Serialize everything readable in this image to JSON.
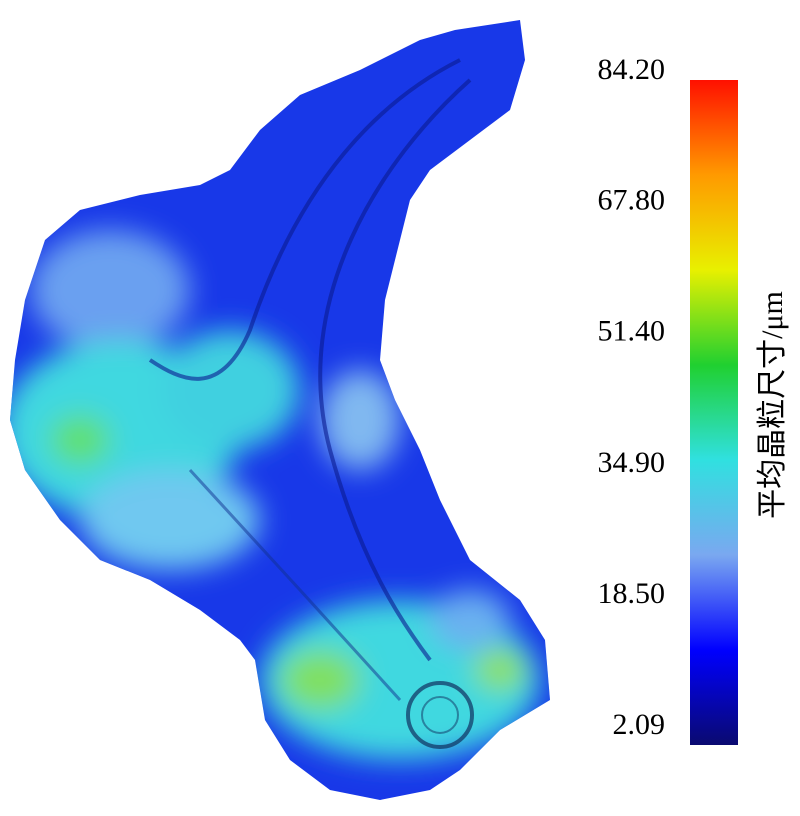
{
  "chart_data": {
    "type": "colorbar",
    "colorbar_label": "平均晶粒尺寸/μm",
    "clim": [
      2.09,
      84.2
    ],
    "cticks": [
      {
        "value": 2.09,
        "label": "2.09"
      },
      {
        "value": 18.5,
        "label": "18.50"
      },
      {
        "value": 34.9,
        "label": "34.90"
      },
      {
        "value": 51.4,
        "label": "51.40"
      },
      {
        "value": 67.8,
        "label": "67.80"
      },
      {
        "value": 84.2,
        "label": "84.20"
      }
    ],
    "colormap": [
      "#0a0a70",
      "#0000ff",
      "#7aa8f0",
      "#30e0e0",
      "#20d030",
      "#e8f000",
      "#ff9a00",
      "#ff1000"
    ]
  }
}
